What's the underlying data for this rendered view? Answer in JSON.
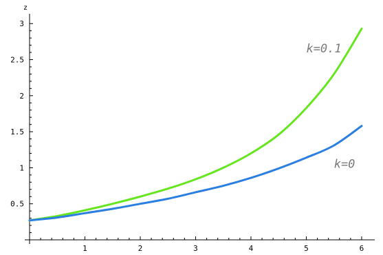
{
  "chart_data": {
    "type": "line",
    "title": "",
    "xlabel": "",
    "ylabel": "z",
    "xlim": [
      0,
      6.1
    ],
    "ylim": [
      0,
      3.05
    ],
    "x_ticks": [
      "1",
      "2",
      "3",
      "4",
      "5",
      "6"
    ],
    "y_ticks": [
      "0.5",
      "1",
      "1.5",
      "2",
      "2.5",
      "3"
    ],
    "grid": false,
    "series": [
      {
        "name": "k=0.1",
        "color": "#66e61f",
        "x": [
          0,
          0.5,
          1,
          1.5,
          2,
          2.5,
          3,
          3.5,
          4,
          4.5,
          5,
          5.5,
          6
        ],
        "y": [
          0.27,
          0.33,
          0.41,
          0.5,
          0.6,
          0.71,
          0.84,
          1.0,
          1.2,
          1.46,
          1.83,
          2.3,
          2.93
        ]
      },
      {
        "name": "k=0",
        "color": "#2b7fe0",
        "x": [
          0,
          0.5,
          1,
          1.5,
          2,
          2.5,
          3,
          3.5,
          4,
          4.5,
          5,
          5.5,
          6
        ],
        "y": [
          0.27,
          0.31,
          0.37,
          0.43,
          0.5,
          0.57,
          0.66,
          0.75,
          0.86,
          0.99,
          1.14,
          1.31,
          1.58
        ]
      }
    ],
    "annotations": [
      {
        "text": "k=0.1",
        "x": 5.0,
        "y": 2.6
      },
      {
        "text": "k=0",
        "x": 5.5,
        "y": 1.0
      }
    ]
  }
}
